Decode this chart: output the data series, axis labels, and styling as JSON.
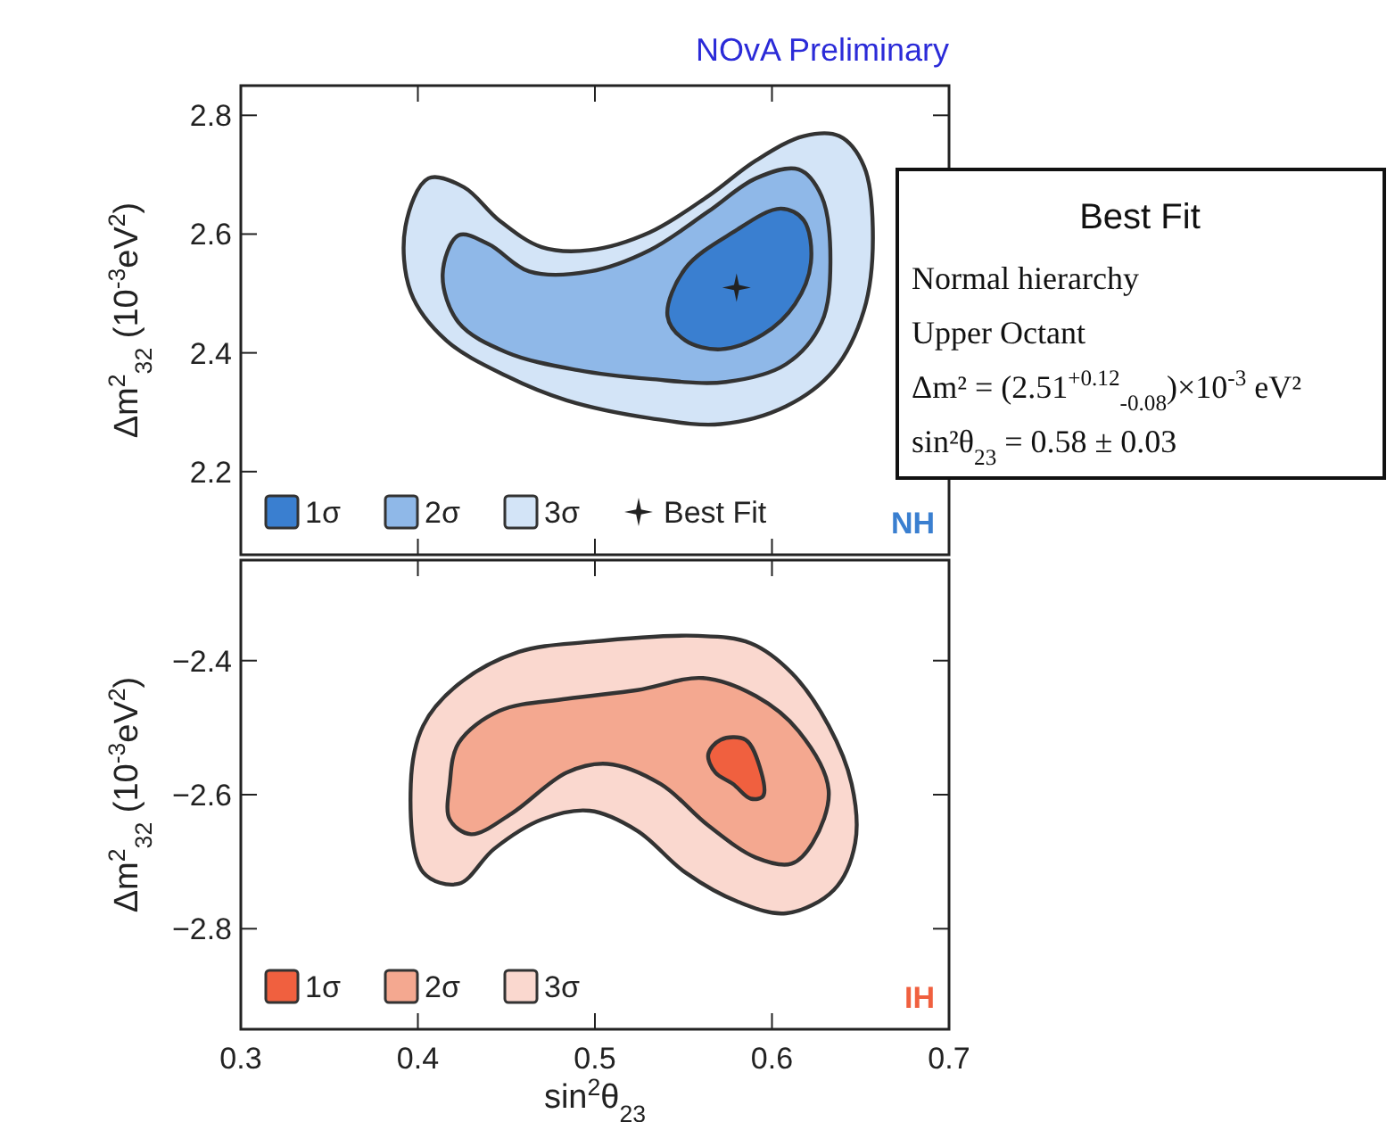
{
  "chart_data": [
    {
      "type": "area",
      "title": "NOvA Preliminary",
      "ylabel": "Δm$^{2}$$_{32}$ (10$^{-3}$eV$^{2}$)",
      "xlim": [
        0.3,
        0.7
      ],
      "xticks": [
        0.3,
        0.4,
        0.5,
        0.6,
        0.7
      ],
      "ylim": [
        2.06,
        2.85
      ],
      "yticks": [
        2.2,
        2.4,
        2.6,
        2.8
      ],
      "tick_labels": "y",
      "legend": "bottom left",
      "annotations": [
        "NH",
        "Best Fit",
        "Normal hierarchy",
        "Upper Octant",
        "Δm² = (2.51$^{+0.12}$$_{-0.08}$)×10$^{-3}$ eV²",
        "sin²θ$_{23}$ = 0.58 ± 0.03"
      ],
      "series": [
        {
          "name": "1σ",
          "color": "#3a7fd0",
          "x": [
            0.541,
            0.551,
            0.578,
            0.605,
            0.618,
            0.622,
            0.613,
            0.595,
            0.571,
            0.551
          ],
          "values": [
            2.462,
            2.542,
            2.603,
            2.643,
            2.623,
            2.552,
            2.482,
            2.431,
            2.406,
            2.421
          ]
        },
        {
          "name": "2σ",
          "color": "#8fb8e8",
          "x": [
            0.423,
            0.414,
            0.423,
            0.45,
            0.49,
            0.531,
            0.574,
            0.608,
            0.628,
            0.633,
            0.628,
            0.615,
            0.591,
            0.564,
            0.531,
            0.497,
            0.463,
            0.44
          ],
          "values": [
            2.598,
            2.532,
            2.451,
            2.401,
            2.371,
            2.356,
            2.351,
            2.381,
            2.451,
            2.552,
            2.664,
            2.709,
            2.694,
            2.638,
            2.573,
            2.537,
            2.537,
            2.583
          ]
        },
        {
          "name": "3σ",
          "color": "#d3e4f7",
          "x": [
            0.406,
            0.393,
            0.396,
            0.416,
            0.45,
            0.484,
            0.531,
            0.571,
            0.608,
            0.635,
            0.652,
            0.657,
            0.652,
            0.638,
            0.618,
            0.591,
            0.564,
            0.531,
            0.497,
            0.47,
            0.446,
            0.426
          ],
          "values": [
            2.694,
            2.613,
            2.502,
            2.421,
            2.361,
            2.32,
            2.29,
            2.28,
            2.31,
            2.371,
            2.472,
            2.593,
            2.714,
            2.765,
            2.765,
            2.724,
            2.664,
            2.603,
            2.573,
            2.578,
            2.623,
            2.679
          ]
        },
        {
          "name": "Best Fit",
          "type": "scatter",
          "marker": "cross",
          "color": "#222222",
          "x": [
            0.58
          ],
          "values": [
            2.51
          ]
        }
      ]
    },
    {
      "type": "area",
      "xlabel": "sin$^{2}$θ$_{23}$",
      "ylabel": "Δm$^{2}$$_{32}$ (10$^{-3}$eV$^{2}$)",
      "xlim": [
        0.3,
        0.7
      ],
      "xticks": [
        0.3,
        0.4,
        0.5,
        0.6,
        0.7
      ],
      "ylim": [
        -2.95,
        -2.25
      ],
      "yticks": [
        -2.4,
        -2.6,
        -2.8
      ],
      "legend": "bottom left",
      "annotations": [
        "IH"
      ],
      "series": [
        {
          "name": "1σ",
          "color": "#f0603f",
          "x": [
            0.564,
            0.571,
            0.585,
            0.593,
            0.595,
            0.588,
            0.578,
            0.568
          ],
          "values": [
            -2.54,
            -2.518,
            -2.518,
            -2.558,
            -2.602,
            -2.606,
            -2.584,
            -2.567
          ]
        },
        {
          "name": "2σ",
          "color": "#f4a890",
          "x": [
            0.418,
            0.423,
            0.446,
            0.484,
            0.524,
            0.561,
            0.591,
            0.615,
            0.632,
            0.623,
            0.611,
            0.591,
            0.564,
            0.537,
            0.507,
            0.484,
            0.453,
            0.43,
            0.418
          ],
          "values": [
            -2.584,
            -2.523,
            -2.475,
            -2.457,
            -2.444,
            -2.426,
            -2.453,
            -2.505,
            -2.593,
            -2.672,
            -2.703,
            -2.694,
            -2.646,
            -2.584,
            -2.554,
            -2.567,
            -2.628,
            -2.659,
            -2.637
          ]
        },
        {
          "name": "3σ",
          "color": "#fad8cf",
          "x": [
            0.396,
            0.403,
            0.423,
            0.457,
            0.497,
            0.558,
            0.588,
            0.611,
            0.632,
            0.645,
            0.647,
            0.635,
            0.608,
            0.581,
            0.551,
            0.524,
            0.497,
            0.47,
            0.443,
            0.423,
            0.403
          ],
          "values": [
            -2.584,
            -2.497,
            -2.435,
            -2.387,
            -2.372,
            -2.363,
            -2.374,
            -2.418,
            -2.497,
            -2.584,
            -2.672,
            -2.742,
            -2.777,
            -2.76,
            -2.716,
            -2.654,
            -2.624,
            -2.637,
            -2.681,
            -2.733,
            -2.716
          ]
        }
      ]
    }
  ]
}
